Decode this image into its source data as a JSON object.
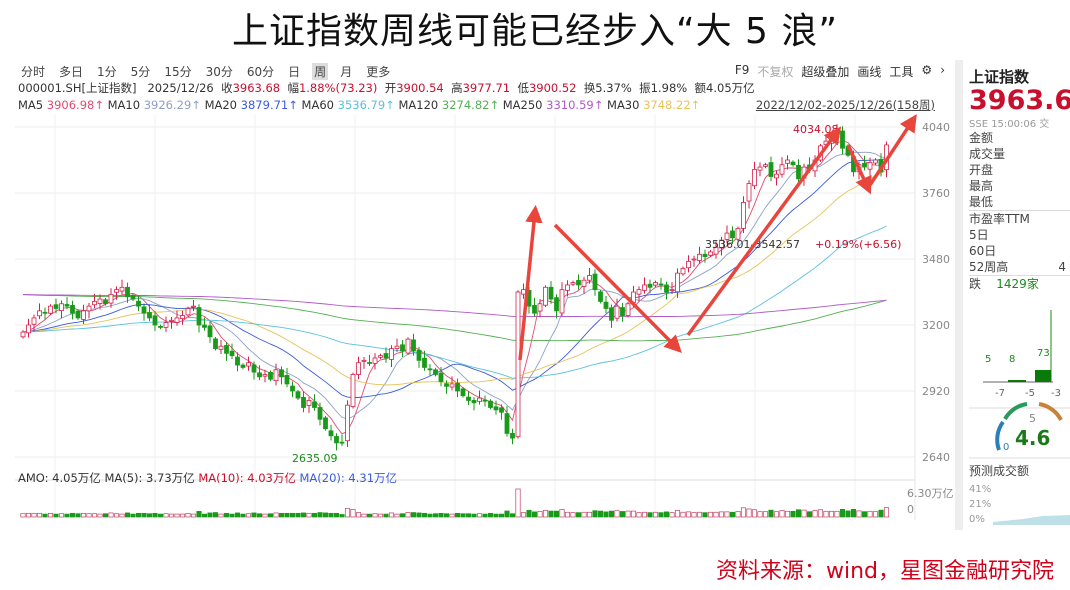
{
  "title": "上证指数周线可能已经步入“大 5 浪”",
  "toolbar": {
    "periods": [
      "分时",
      "多日",
      "1分",
      "5分",
      "15分",
      "30分",
      "60分",
      "日",
      "周",
      "月",
      "更多"
    ],
    "active": "周",
    "right": [
      "F9",
      "不复权",
      "超级叠加",
      "画线",
      "工具"
    ]
  },
  "info": {
    "code": "000001.SH[上证指数]",
    "date": "2025/12/26",
    "close_label": "收",
    "close": "3963.68",
    "chg_label": "幅",
    "chg": "1.88%(73.23)",
    "open_label": "开",
    "open": "3900.54",
    "high_label": "高",
    "high": "3977.71",
    "low_label": "低",
    "low": "3900.52",
    "turnover": "换5.37%",
    "amplitude": "振1.98%",
    "amount": "额4.05万亿"
  },
  "ma": {
    "ma5": "MA5",
    "ma5_v": "3906.98↑",
    "ma10": "MA10",
    "ma10_v": "3926.29↑",
    "ma20": "MA20",
    "ma20_v": "3879.71↑",
    "ma60": "MA60",
    "ma60_v": "3536.79↑",
    "ma120": "MA120",
    "ma120_v": "3274.82↑",
    "ma250": "MA250",
    "ma250_v": "3310.59↑",
    "ma30": "MA30",
    "ma30_v": "3748.22↑"
  },
  "range": "2022/12/02-2025/12/26(158周)",
  "colors": {
    "up": "#d6204b",
    "down": "#1a9a1a",
    "ma5": "#e34a6f",
    "ma10": "#8ea0c8",
    "ma20": "#3b5bdb",
    "ma30": "#e6c35a",
    "ma60": "#5bc0de",
    "ma120": "#55b055",
    "ma250": "#b05ac8",
    "arrow": "#e8453c"
  },
  "chart_data": {
    "type": "candlestick",
    "period": "weekly",
    "yticks": [
      4040,
      3760,
      3480,
      3200,
      2920,
      2640
    ],
    "ylim": [
      2640,
      4040
    ],
    "closes": [
      3170,
      3200,
      3230,
      3260,
      3250,
      3280,
      3270,
      3290,
      3280,
      3250,
      3230,
      3260,
      3280,
      3300,
      3310,
      3290,
      3330,
      3350,
      3360,
      3320,
      3310,
      3280,
      3250,
      3230,
      3200,
      3190,
      3210,
      3220,
      3230,
      3240,
      3270,
      3280,
      3200,
      3190,
      3150,
      3100,
      3110,
      3080,
      3070,
      3030,
      3020,
      3040,
      3000,
      2980,
      2990,
      2970,
      3010,
      2980,
      2950,
      2920,
      2890,
      2850,
      2880,
      2850,
      2800,
      2760,
      2730,
      2700,
      2700,
      2860,
      2990,
      3040,
      3050,
      3040,
      3060,
      3070,
      3060,
      3100,
      3110,
      3090,
      3140,
      3090,
      3050,
      3020,
      3010,
      2990,
      2960,
      2940,
      2950,
      2920,
      2900,
      2880,
      2870,
      2890,
      2880,
      2850,
      2840,
      2830,
      2740,
      2720,
      3340,
      3350,
      3280,
      3250,
      3290,
      3360,
      3310,
      3260,
      3350,
      3370,
      3380,
      3370,
      3390,
      3410,
      3350,
      3300,
      3270,
      3220,
      3280,
      3240,
      3290,
      3340,
      3350,
      3370,
      3360,
      3380,
      3370,
      3340,
      3350,
      3420,
      3440,
      3470,
      3480,
      3500,
      3490,
      3510,
      3530,
      3560,
      3590,
      3570,
      3610,
      3720,
      3800,
      3860,
      3870,
      3880,
      3830,
      3840,
      3880,
      3900,
      3880,
      3820,
      3870,
      3860,
      3900,
      3960,
      3980,
      4000,
      4020,
      3950,
      3920,
      3850,
      3880,
      3870,
      3890,
      3900,
      3850,
      3964
    ],
    "annotations": {
      "high": "4034.08",
      "low": "2635.09",
      "measure": "3536.01-3542.57",
      "measure_chg": "+0.19%(+6.56)"
    },
    "volume_axis": [
      "6.30万亿",
      "0"
    ]
  },
  "amo": {
    "amo": "AMO: 4.05万亿",
    "ma5": "MA(5): 3.73万亿",
    "ma10": "MA(10): 4.03万亿",
    "ma20": "MA(20): 4.31万亿"
  },
  "side": {
    "name": "上证指数",
    "price": "3963.6",
    "ts": "SSE 15:00:06 交",
    "rows": [
      "金额",
      "成交量",
      "开盘",
      "最高",
      "最低",
      "市盈率TTM",
      "5日",
      "60日"
    ],
    "high52": "52周高",
    "high52_v": "4",
    "fall": "跌",
    "fall_v": "1429家",
    "hist_vals": [
      "5",
      "8",
      "73"
    ],
    "hist_ticks": [
      "-7",
      "-5",
      "-3"
    ],
    "gauge_min": "0",
    "gauge_mid": "5",
    "gauge_val": "4.6",
    "forecast": "预测成交额",
    "pcts": [
      "41%",
      "21%",
      "0%"
    ]
  },
  "source": "资料来源：wind，星图金融研究院"
}
